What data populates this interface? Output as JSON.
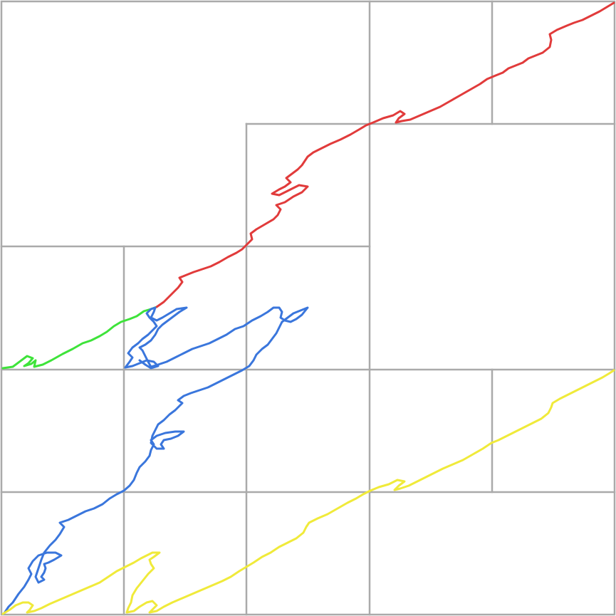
{
  "diagram": {
    "type": "fractal-curves-on-square-grid",
    "background_color": "#ffffff",
    "grid_color": "#aaaaaa"
  },
  "curves": [
    {
      "id": "green",
      "color": "#3ee33a"
    },
    {
      "id": "red",
      "color": "#e13b3b"
    },
    {
      "id": "blue",
      "color": "#3a76dc"
    },
    {
      "id": "yellow",
      "color": "#f0ea3a"
    }
  ]
}
